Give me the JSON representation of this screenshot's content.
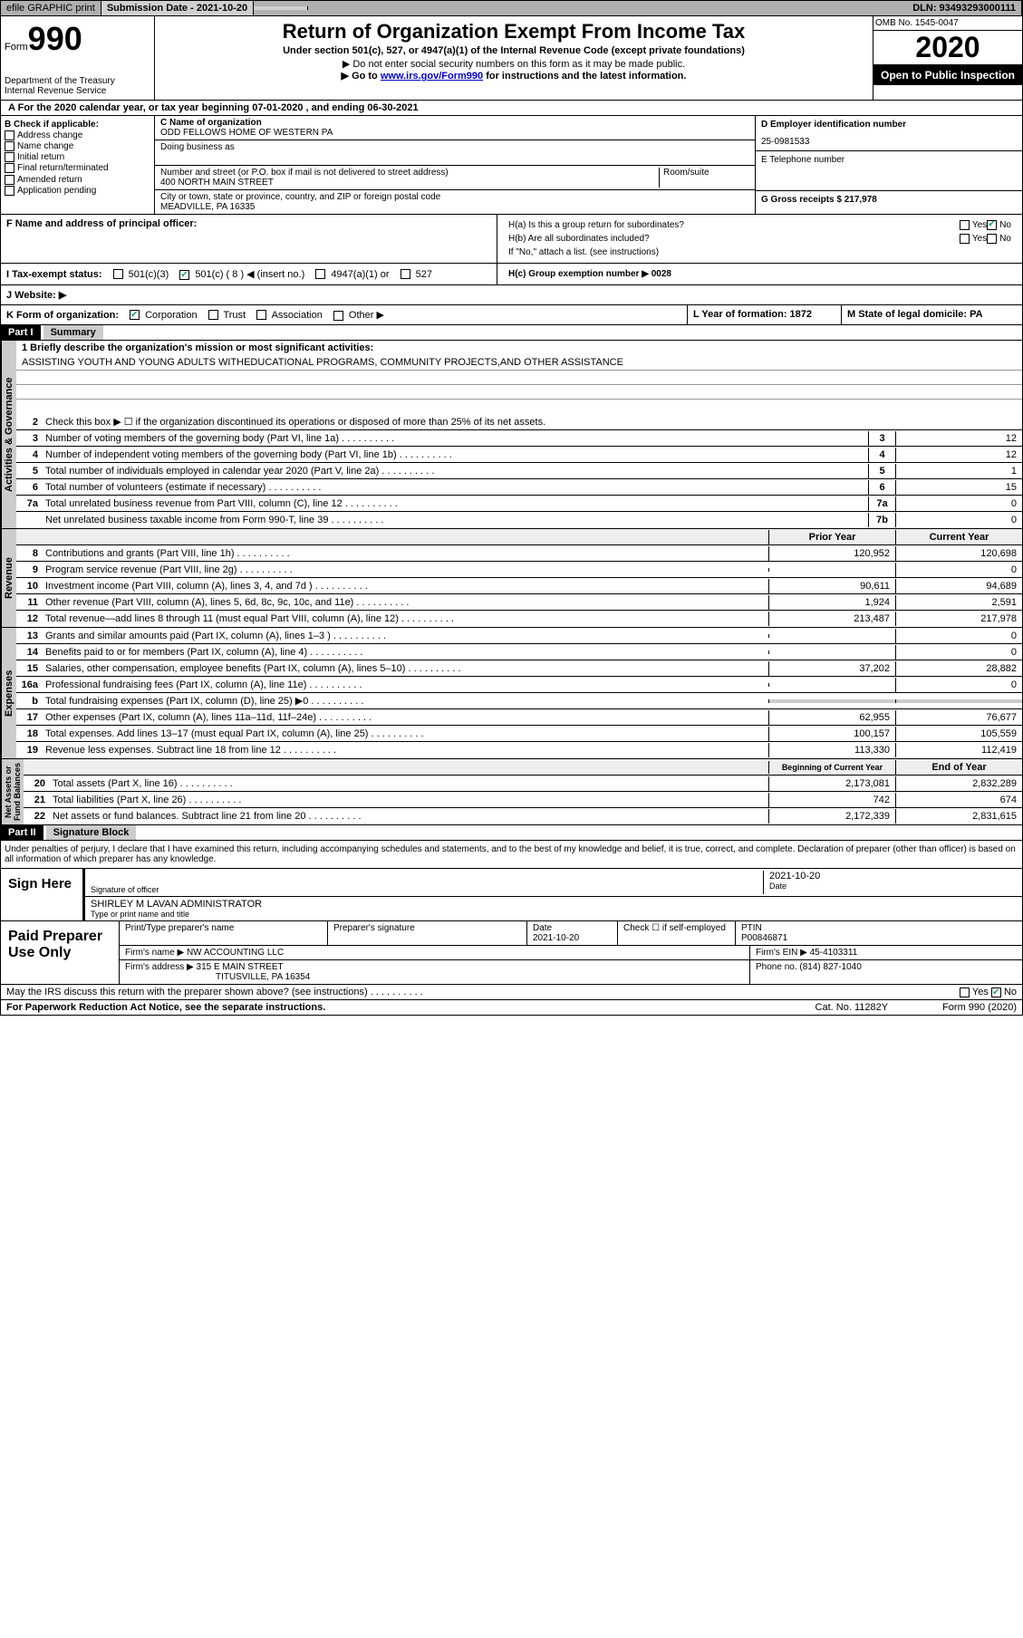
{
  "topbar": {
    "efile": "efile GRAPHIC print",
    "submission": "Submission Date - 2021-10-20",
    "dln": "DLN: 93493293000111"
  },
  "header": {
    "form_label": "Form",
    "form_num": "990",
    "dept": "Department of the Treasury\nInternal Revenue Service",
    "title": "Return of Organization Exempt From Income Tax",
    "subtitle": "Under section 501(c), 527, or 4947(a)(1) of the Internal Revenue Code (except private foundations)",
    "line1": "▶ Do not enter social security numbers on this form as it may be made public.",
    "line2_pre": "▶ Go to ",
    "line2_link": "www.irs.gov/Form990",
    "line2_post": " for instructions and the latest information.",
    "omb": "OMB No. 1545-0047",
    "year": "2020",
    "inspection": "Open to Public Inspection"
  },
  "period": "For the 2020 calendar year, or tax year beginning 07-01-2020    , and ending 06-30-2021",
  "col_b": {
    "label": "B Check if applicable:",
    "opts": [
      "Address change",
      "Name change",
      "Initial return",
      "Final return/terminated",
      "Amended return",
      "Application pending"
    ]
  },
  "org": {
    "c_label": "C Name of organization",
    "name": "ODD FELLOWS HOME OF WESTERN PA",
    "dba": "Doing business as",
    "addr_label": "Number and street (or P.O. box if mail is not delivered to street address)",
    "room": "Room/suite",
    "addr": "400 NORTH MAIN STREET",
    "city_label": "City or town, state or province, country, and ZIP or foreign postal code",
    "city": "MEADVILLE, PA  16335",
    "f_label": "F  Name and address of principal officer:"
  },
  "right": {
    "d_label": "D Employer identification number",
    "ein": "25-0981533",
    "e_label": "E Telephone number",
    "g_label": "G Gross receipts $ 217,978"
  },
  "h": {
    "a": "H(a)  Is this a group return for subordinates?",
    "b": "H(b)  Are all subordinates included?",
    "b_note": "If \"No,\" attach a list. (see instructions)",
    "c": "H(c)  Group exemption number ▶   0028"
  },
  "status": {
    "i": "I  Tax-exempt status:",
    "c3": "501(c)(3)",
    "c": "501(c) ( 8 ) ◀ (insert no.)",
    "a1": "4947(a)(1) or",
    "527": "527"
  },
  "j": "J   Website: ▶",
  "k": {
    "label": "K Form of organization:",
    "corp": "Corporation",
    "trust": "Trust",
    "assoc": "Association",
    "other": "Other ▶"
  },
  "l": {
    "label": "L Year of formation: 1872"
  },
  "m": {
    "label": "M State of legal domicile: PA"
  },
  "part1": {
    "tag": "Part I",
    "title": "Summary"
  },
  "mission": {
    "q": "1   Briefly describe the organization's mission or most significant activities:",
    "text": "ASSISTING YOUTH AND YOUNG ADULTS WITHEDUCATIONAL PROGRAMS, COMMUNITY PROJECTS,AND OTHER ASSISTANCE"
  },
  "gov_lines": [
    {
      "n": "2",
      "t": "Check this box ▶ ☐  if the organization discontinued its operations or disposed of more than 25% of its net assets."
    },
    {
      "n": "3",
      "t": "Number of voting members of the governing body (Part VI, line 1a)",
      "box": "3",
      "v": "12"
    },
    {
      "n": "4",
      "t": "Number of independent voting members of the governing body (Part VI, line 1b)",
      "box": "4",
      "v": "12"
    },
    {
      "n": "5",
      "t": "Total number of individuals employed in calendar year 2020 (Part V, line 2a)",
      "box": "5",
      "v": "1"
    },
    {
      "n": "6",
      "t": "Total number of volunteers (estimate if necessary)",
      "box": "6",
      "v": "15"
    },
    {
      "n": "7a",
      "t": "Total unrelated business revenue from Part VIII, column (C), line 12",
      "box": "7a",
      "v": "0"
    },
    {
      "n": "",
      "t": "Net unrelated business taxable income from Form 990-T, line 39",
      "box": "7b",
      "v": "0"
    }
  ],
  "col_headers": {
    "prior": "Prior Year",
    "current": "Current Year"
  },
  "revenue": [
    {
      "n": "8",
      "t": "Contributions and grants (Part VIII, line 1h)",
      "p": "120,952",
      "c": "120,698"
    },
    {
      "n": "9",
      "t": "Program service revenue (Part VIII, line 2g)",
      "p": "",
      "c": "0"
    },
    {
      "n": "10",
      "t": "Investment income (Part VIII, column (A), lines 3, 4, and 7d )",
      "p": "90,611",
      "c": "94,689"
    },
    {
      "n": "11",
      "t": "Other revenue (Part VIII, column (A), lines 5, 6d, 8c, 9c, 10c, and 11e)",
      "p": "1,924",
      "c": "2,591"
    },
    {
      "n": "12",
      "t": "Total revenue—add lines 8 through 11 (must equal Part VIII, column (A), line 12)",
      "p": "213,487",
      "c": "217,978"
    }
  ],
  "expenses": [
    {
      "n": "13",
      "t": "Grants and similar amounts paid (Part IX, column (A), lines 1–3 )",
      "p": "",
      "c": "0"
    },
    {
      "n": "14",
      "t": "Benefits paid to or for members (Part IX, column (A), line 4)",
      "p": "",
      "c": "0"
    },
    {
      "n": "15",
      "t": "Salaries, other compensation, employee benefits (Part IX, column (A), lines 5–10)",
      "p": "37,202",
      "c": "28,882"
    },
    {
      "n": "16a",
      "t": "Professional fundraising fees (Part IX, column (A), line 11e)",
      "p": "",
      "c": "0"
    },
    {
      "n": "b",
      "t": "Total fundraising expenses (Part IX, column (D), line 25) ▶0",
      "p": "",
      "c": ""
    },
    {
      "n": "17",
      "t": "Other expenses (Part IX, column (A), lines 11a–11d, 11f–24e)",
      "p": "62,955",
      "c": "76,677"
    },
    {
      "n": "18",
      "t": "Total expenses. Add lines 13–17 (must equal Part IX, column (A), line 25)",
      "p": "100,157",
      "c": "105,559"
    },
    {
      "n": "19",
      "t": "Revenue less expenses. Subtract line 18 from line 12",
      "p": "113,330",
      "c": "112,419"
    }
  ],
  "net_headers": {
    "begin": "Beginning of Current Year",
    "end": "End of Year"
  },
  "net": [
    {
      "n": "20",
      "t": "Total assets (Part X, line 16)",
      "p": "2,173,081",
      "c": "2,832,289"
    },
    {
      "n": "21",
      "t": "Total liabilities (Part X, line 26)",
      "p": "742",
      "c": "674"
    },
    {
      "n": "22",
      "t": "Net assets or fund balances. Subtract line 21 from line 20",
      "p": "2,172,339",
      "c": "2,831,615"
    }
  ],
  "part2": {
    "tag": "Part II",
    "title": "Signature Block"
  },
  "perjury": "Under penalties of perjury, I declare that I have examined this return, including accompanying schedules and statements, and to the best of my knowledge and belief, it is true, correct, and complete. Declaration of preparer (other than officer) is based on all information of which preparer has any knowledge.",
  "sign": {
    "label": "Sign Here",
    "sig_of": "Signature of officer",
    "date": "2021-10-20",
    "date_lbl": "Date",
    "name": "SHIRLEY M LAVAN  ADMINISTRATOR",
    "name_lbl": "Type or print name and title"
  },
  "prep": {
    "label": "Paid Preparer Use Only",
    "h1": "Print/Type preparer's name",
    "h2": "Preparer's signature",
    "h3": "Date",
    "h3v": "2021-10-20",
    "h4": "Check ☐ if self-employed",
    "h5": "PTIN",
    "ptin": "P00846871",
    "firm_lbl": "Firm's name      ▶",
    "firm": "NW ACCOUNTING LLC",
    "ein_lbl": "Firm's EIN ▶",
    "ein": "45-4103311",
    "addr_lbl": "Firm's address ▶",
    "addr1": "315 E MAIN STREET",
    "addr2": "TITUSVILLE, PA  16354",
    "phone_lbl": "Phone no.",
    "phone": "(814) 827-1040"
  },
  "irs_discuss": "May the IRS discuss this return with the preparer shown above? (see instructions)",
  "footer": {
    "pra": "For Paperwork Reduction Act Notice, see the separate instructions.",
    "cat": "Cat. No. 11282Y",
    "form": "Form 990 (2020)"
  },
  "yesno": {
    "yes": "Yes",
    "no": "No"
  }
}
